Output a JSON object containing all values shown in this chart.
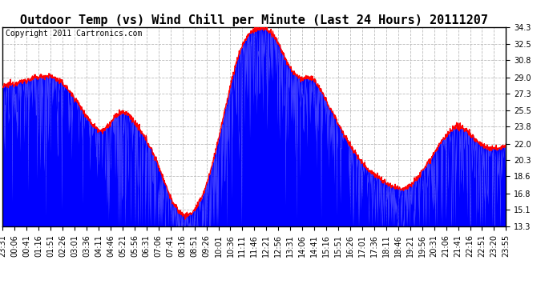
{
  "title": "Outdoor Temp (vs) Wind Chill per Minute (Last 24 Hours) 20111207",
  "copyright": "Copyright 2011 Cartronics.com",
  "yticks": [
    13.3,
    15.1,
    16.8,
    18.6,
    20.3,
    22.0,
    23.8,
    25.5,
    27.3,
    29.0,
    30.8,
    32.5,
    34.3
  ],
  "ymin": 13.3,
  "ymax": 34.3,
  "bg_color": "#ffffff",
  "plot_bg_color": "#ffffff",
  "grid_color": "#bbbbbb",
  "line_color_temp": "#ff0000",
  "fill_color_wind": "#0000ff",
  "xtick_labels": [
    "23:31",
    "00:06",
    "00:41",
    "01:16",
    "01:51",
    "02:26",
    "03:01",
    "03:36",
    "04:11",
    "04:46",
    "05:21",
    "05:56",
    "06:31",
    "07:06",
    "07:41",
    "08:16",
    "08:51",
    "09:26",
    "10:01",
    "10:36",
    "11:11",
    "11:46",
    "12:21",
    "12:56",
    "13:31",
    "14:06",
    "14:41",
    "15:16",
    "15:51",
    "16:26",
    "17:01",
    "17:36",
    "18:11",
    "18:46",
    "19:21",
    "19:56",
    "20:31",
    "21:06",
    "21:41",
    "22:16",
    "22:51",
    "23:20",
    "23:55"
  ],
  "title_fontsize": 11,
  "tick_fontsize": 7,
  "copyright_fontsize": 7,
  "temp_profile": [
    28.0,
    28.1,
    28.2,
    28.3,
    28.3,
    28.4,
    28.5,
    28.5,
    28.6,
    28.7,
    28.7,
    28.8,
    28.9,
    29.0,
    29.0,
    29.1,
    29.1,
    29.1,
    29.2,
    29.1,
    29.0,
    28.9,
    28.7,
    28.5,
    28.3,
    28.0,
    27.7,
    27.3,
    27.0,
    26.6,
    26.2,
    25.8,
    25.4,
    25.0,
    24.6,
    24.2,
    23.9,
    23.7,
    23.5,
    23.4,
    23.5,
    23.7,
    24.0,
    24.3,
    24.7,
    25.0,
    25.2,
    25.3,
    25.3,
    25.2,
    25.0,
    24.7,
    24.3,
    23.9,
    23.5,
    23.1,
    22.7,
    22.3,
    21.8,
    21.3,
    20.7,
    20.1,
    19.4,
    18.7,
    18.0,
    17.3,
    16.6,
    16.0,
    15.5,
    15.1,
    14.8,
    14.6,
    14.5,
    14.5,
    14.6,
    14.8,
    15.1,
    15.5,
    16.0,
    16.6,
    17.3,
    18.1,
    19.0,
    20.0,
    21.1,
    22.2,
    23.3,
    24.5,
    25.7,
    26.9,
    28.1,
    29.2,
    30.2,
    31.1,
    31.9,
    32.5,
    33.0,
    33.4,
    33.7,
    33.9,
    34.0,
    34.1,
    34.2,
    34.2,
    34.1,
    33.9,
    33.7,
    33.4,
    33.0,
    32.6,
    32.0,
    31.4,
    30.8,
    30.3,
    29.8,
    29.5,
    29.2,
    29.0,
    28.9,
    28.9,
    29.0,
    29.0,
    28.9,
    28.7,
    28.4,
    28.0,
    27.5,
    27.0,
    26.5,
    26.0,
    25.5,
    25.0,
    24.5,
    24.0,
    23.5,
    23.0,
    22.5,
    22.0,
    21.6,
    21.2,
    20.8,
    20.4,
    20.1,
    19.8,
    19.5,
    19.2,
    19.0,
    18.8,
    18.6,
    18.4,
    18.2,
    18.0,
    17.8,
    17.6,
    17.5,
    17.4,
    17.3,
    17.3,
    17.3,
    17.4,
    17.5,
    17.7,
    17.9,
    18.2,
    18.5,
    18.8,
    19.2,
    19.6,
    20.0,
    20.4,
    20.8,
    21.2,
    21.6,
    22.0,
    22.4,
    22.7,
    23.0,
    23.3,
    23.5,
    23.7,
    23.8,
    23.8,
    23.7,
    23.5,
    23.3,
    23.0,
    22.7,
    22.4,
    22.2,
    22.0,
    21.8,
    21.7,
    21.6,
    21.5,
    21.5,
    21.5,
    21.5,
    21.6,
    21.7,
    21.8
  ]
}
